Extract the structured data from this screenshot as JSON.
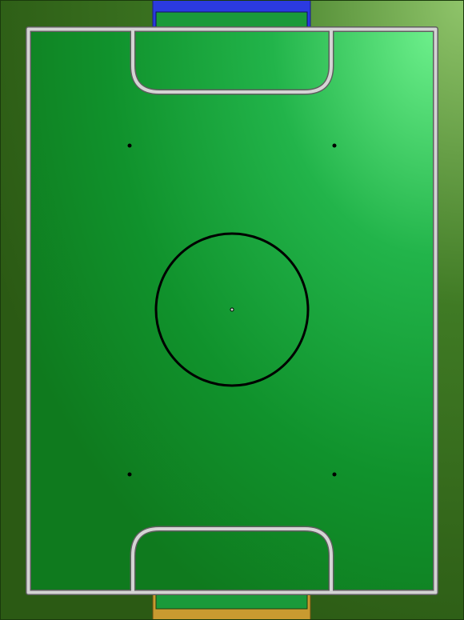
{
  "field": {
    "type": "top-down soccer pitch",
    "colors": {
      "surround_dark": "#2b5a14",
      "surround_light": "#8fc46a",
      "pitch_dark": "#0f7a1e",
      "pitch_mid": "#12a23c",
      "pitch_light": "#6ef08c",
      "lines": "#d4d4d4",
      "line_outline": "#5e5e5e",
      "center_circle": "#000000",
      "markers": "#000000"
    },
    "top_goal": {
      "label": "",
      "color": "#2b3ae0",
      "inner_color": "#1a9a3a"
    },
    "bottom_goal": {
      "label": "",
      "color": "#c89a30",
      "inner_color": "#1a9a3a"
    },
    "penalty_spots_count": 4,
    "has_center_spot": true
  }
}
